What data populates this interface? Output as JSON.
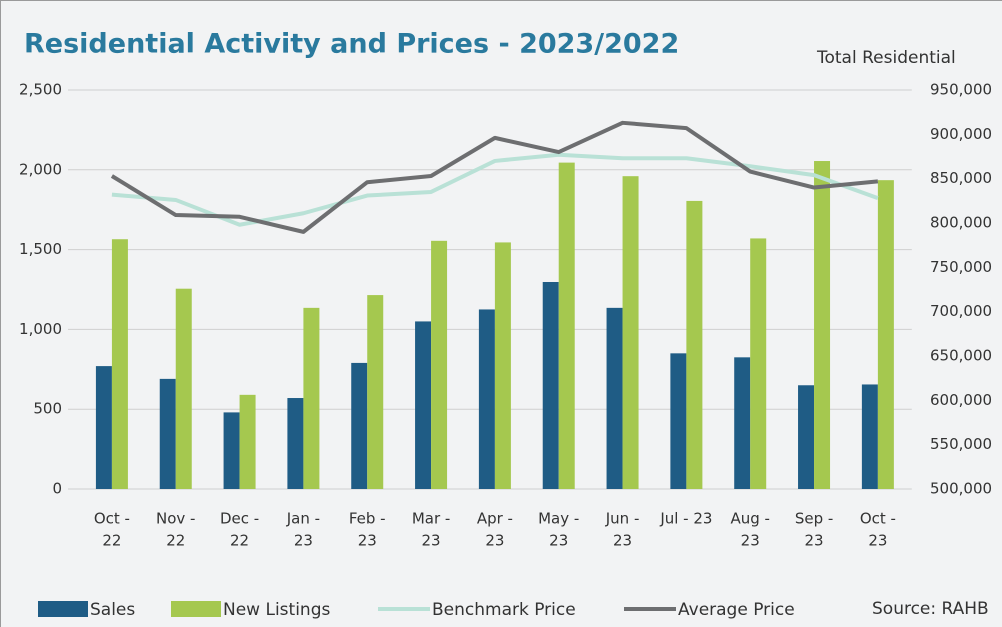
{
  "chart_data": {
    "type": "bar_line",
    "title": "Residential Activity and Prices - 2023/2022",
    "y2_label": "Total Residential",
    "source": "Source: RAHB",
    "categories": [
      [
        "Oct -",
        "22"
      ],
      [
        "Nov -",
        "22"
      ],
      [
        "Dec -",
        "22"
      ],
      [
        "Jan -",
        "23"
      ],
      [
        "Feb -",
        "23"
      ],
      [
        "Mar -",
        "23"
      ],
      [
        "Apr -",
        "23"
      ],
      [
        "May -",
        "23"
      ],
      [
        "Jun -",
        "23"
      ],
      [
        "Jul - 23"
      ],
      [
        "Aug -",
        "23"
      ],
      [
        "Sep -",
        "23"
      ],
      [
        "Oct -",
        "23"
      ]
    ],
    "series": [
      {
        "name": "Sales",
        "kind": "bar",
        "color": "#1f5c85",
        "values": [
          770,
          690,
          480,
          570,
          790,
          1050,
          1125,
          1297,
          1135,
          850,
          825,
          650,
          655
        ]
      },
      {
        "name": "New Listings",
        "kind": "bar",
        "color": "#a5c84f",
        "values": [
          1565,
          1255,
          590,
          1135,
          1215,
          1555,
          1545,
          2045,
          1960,
          1805,
          1570,
          2055,
          1935
        ]
      },
      {
        "name": "Benchmark Price",
        "kind": "line",
        "axis": "y2",
        "color": "#b9e1d6",
        "values": [
          832000,
          826000,
          798000,
          811000,
          831000,
          835000,
          870000,
          877000,
          873000,
          873000,
          864000,
          854000,
          828000
        ]
      },
      {
        "name": "Average Price",
        "kind": "line",
        "axis": "y2",
        "color": "#6d6e70",
        "values": [
          853000,
          809000,
          807000,
          790000,
          846000,
          853000,
          896000,
          880000,
          913000,
          907000,
          858000,
          840000,
          847000
        ]
      }
    ],
    "ylim": [
      0,
      2500
    ],
    "yticks": [
      0,
      500,
      {
        "value": 1000,
        "label": "1,000"
      },
      {
        "value": 1500,
        "label": "1,500"
      },
      {
        "value": 2000,
        "label": "2,000"
      },
      {
        "value": 2500,
        "label": "2,500"
      }
    ],
    "y2lim": [
      500000,
      950000
    ],
    "y2ticks": [
      {
        "value": 500000,
        "label": "500,000"
      },
      {
        "value": 550000,
        "label": "550,000"
      },
      {
        "value": 600000,
        "label": "600,000"
      },
      {
        "value": 650000,
        "label": "650,000"
      },
      {
        "value": 700000,
        "label": "700,000"
      },
      {
        "value": 750000,
        "label": "750,000"
      },
      {
        "value": 800000,
        "label": "800,000"
      },
      {
        "value": 850000,
        "label": "850,000"
      },
      {
        "value": 900000,
        "label": "900,000"
      },
      {
        "value": 950000,
        "label": "950,000"
      }
    ],
    "grid": true
  }
}
